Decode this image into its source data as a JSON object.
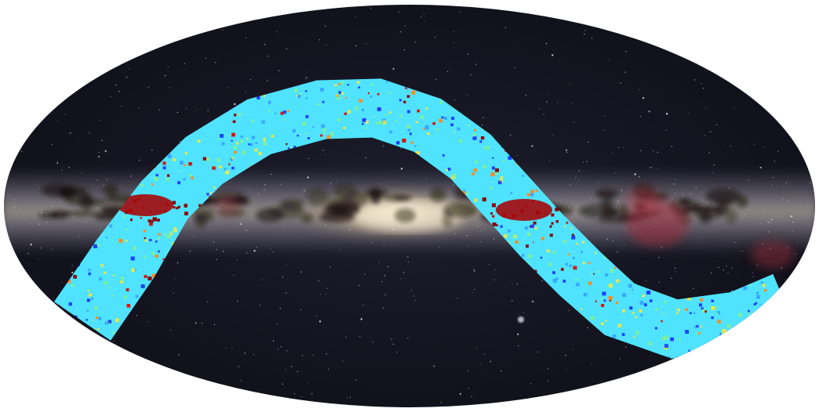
{
  "figure": {
    "projection": "mollweide-all-sky",
    "elements": [
      "background-sky",
      "galactic-plane",
      "survey-strip"
    ],
    "colors": {
      "page_background": "#ffffff",
      "sky_background": "#14141f",
      "galactic_glow": "#efe2c6",
      "dust_lanes": "#1a120c",
      "nebula": "#9c2a3a",
      "strip_colormap": [
        "#1f3cff",
        "#3aa7ff",
        "#4fe3ff",
        "#7df0a0",
        "#e8e84a",
        "#ff8a1e",
        "#d4140d",
        "#8a0608"
      ]
    }
  }
}
